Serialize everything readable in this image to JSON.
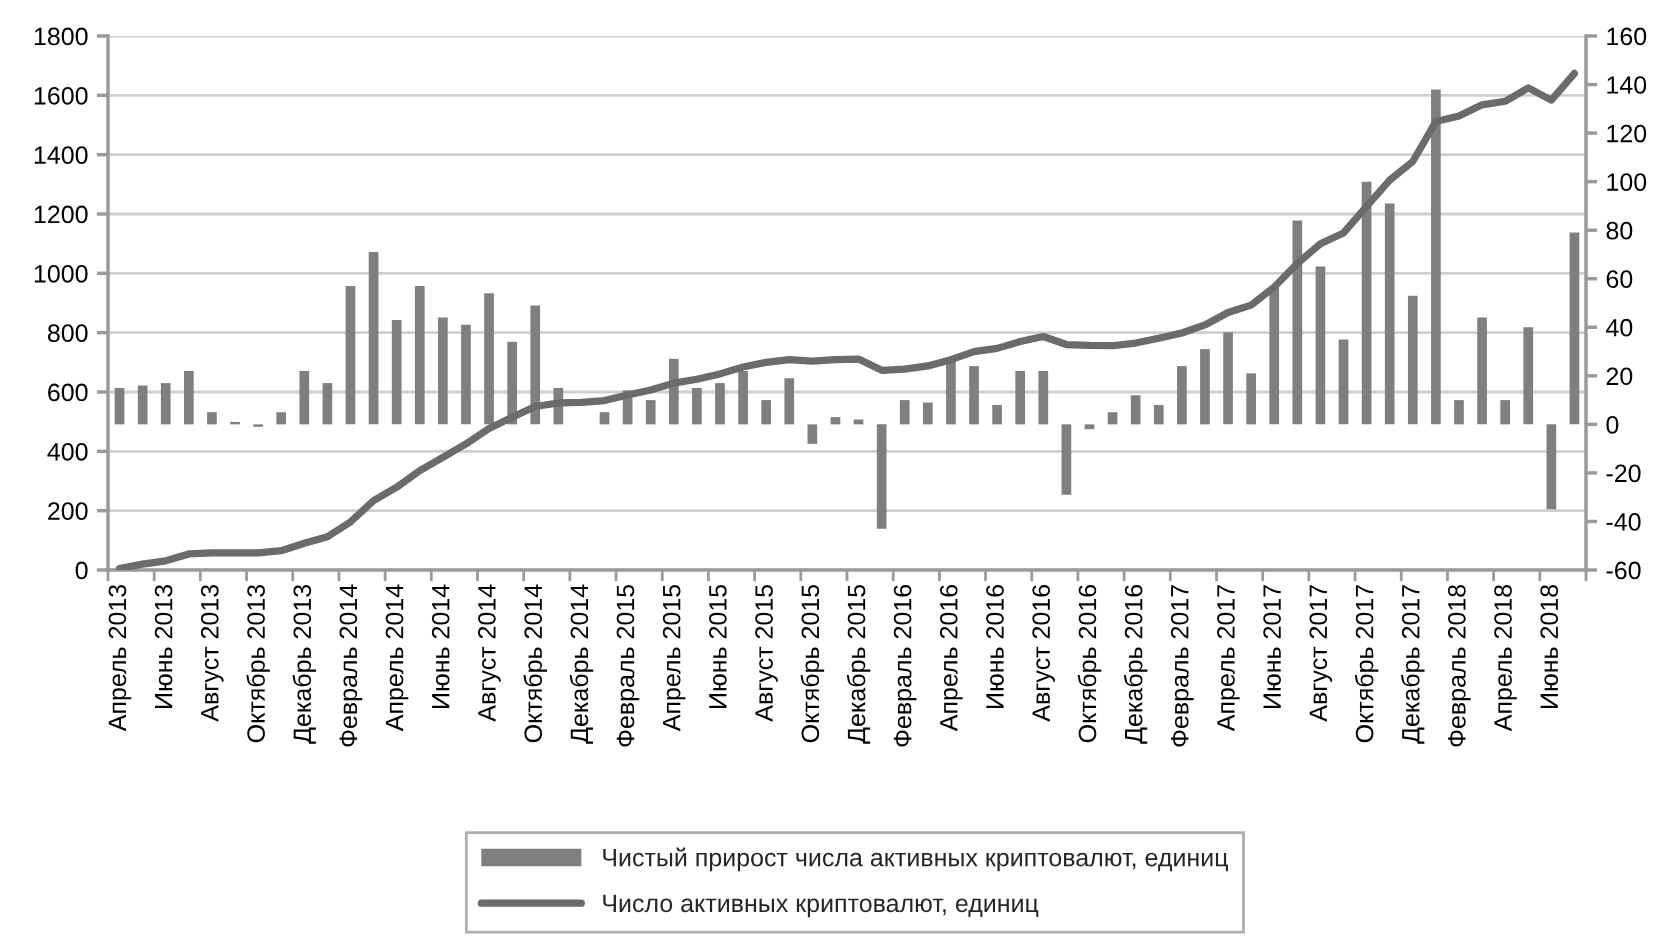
{
  "chart_data": {
    "type": "bar",
    "categories": [
      "Апрель 2013",
      null,
      "Июнь 2013",
      null,
      "Август 2013",
      null,
      "Октябрь 2013",
      null,
      "Декабрь 2013",
      null,
      "Февраль 2014",
      null,
      "Апрель 2014",
      null,
      "Июнь 2014",
      null,
      "Август 2014",
      null,
      "Октябрь 2014",
      null,
      "Декабрь 2014",
      null,
      "Февраль 2015",
      null,
      "Апрель 2015",
      null,
      "Июнь 2015",
      null,
      "Август 2015",
      null,
      "Октябрь 2015",
      null,
      "Декабрь 2015",
      null,
      "Февраль 2016",
      null,
      "Апрель 2016",
      null,
      "Июнь 2016",
      null,
      "Август 2016",
      null,
      "Октябрь 2016",
      null,
      "Декабрь 2016",
      null,
      "Февраль 2017",
      null,
      "Апрель 2017",
      null,
      "Июнь 2017",
      null,
      "Август 2017",
      null,
      "Октябрь 2017",
      null,
      "Декабрь 2017",
      null,
      "Февраль 2018",
      null,
      "Апрель 2018",
      null,
      "Июнь 2018",
      null
    ],
    "series": [
      {
        "name": "Чистый прирост числа активных криптовалют, единиц",
        "axis": "y2",
        "color": "#7f7f7f",
        "values": [
          15,
          16,
          17,
          22,
          5,
          1,
          -1,
          5,
          22,
          17,
          57,
          71,
          43,
          57,
          44,
          41,
          54,
          34,
          49,
          15,
          0,
          5,
          14,
          10,
          27,
          15,
          17,
          22,
          10,
          19,
          -8,
          3,
          2,
          -43,
          10,
          9,
          26,
          24,
          8,
          22,
          22,
          -29,
          -2,
          5,
          12,
          8,
          24,
          31,
          38,
          21,
          57,
          84,
          65,
          35,
          100,
          91,
          53,
          138,
          10,
          44,
          10,
          40,
          -35,
          79
        ]
      },
      {
        "name": "Число активных криптовалют, единиц",
        "type": "line",
        "color": "#6b6b6b",
        "values": [
          5,
          20,
          31,
          54,
          58,
          58,
          58,
          65,
          90,
          112,
          162,
          234,
          279,
          335,
          380,
          425,
          477,
          515,
          551,
          563,
          565,
          571,
          590,
          607,
          630,
          643,
          661,
          684,
          700,
          709,
          704,
          709,
          711,
          673,
          677,
          688,
          709,
          736,
          747,
          770,
          787,
          760,
          757,
          756,
          765,
          781,
          799,
          826,
          868,
          893,
          954,
          1033,
          1100,
          1136,
          1226,
          1314,
          1377,
          1512,
          1530,
          1568,
          1580,
          1625,
          1584,
          1674
        ]
      }
    ],
    "ylim": [
      0,
      1800
    ],
    "yticks": [
      0,
      200,
      400,
      600,
      800,
      1000,
      1200,
      1400,
      1600,
      1800
    ],
    "y2lim": [
      -60,
      160
    ],
    "y2ticks": [
      -60,
      -40,
      -20,
      0,
      20,
      40,
      60,
      80,
      100,
      120,
      140,
      160
    ],
    "grid": "y",
    "legend": "bottom"
  }
}
